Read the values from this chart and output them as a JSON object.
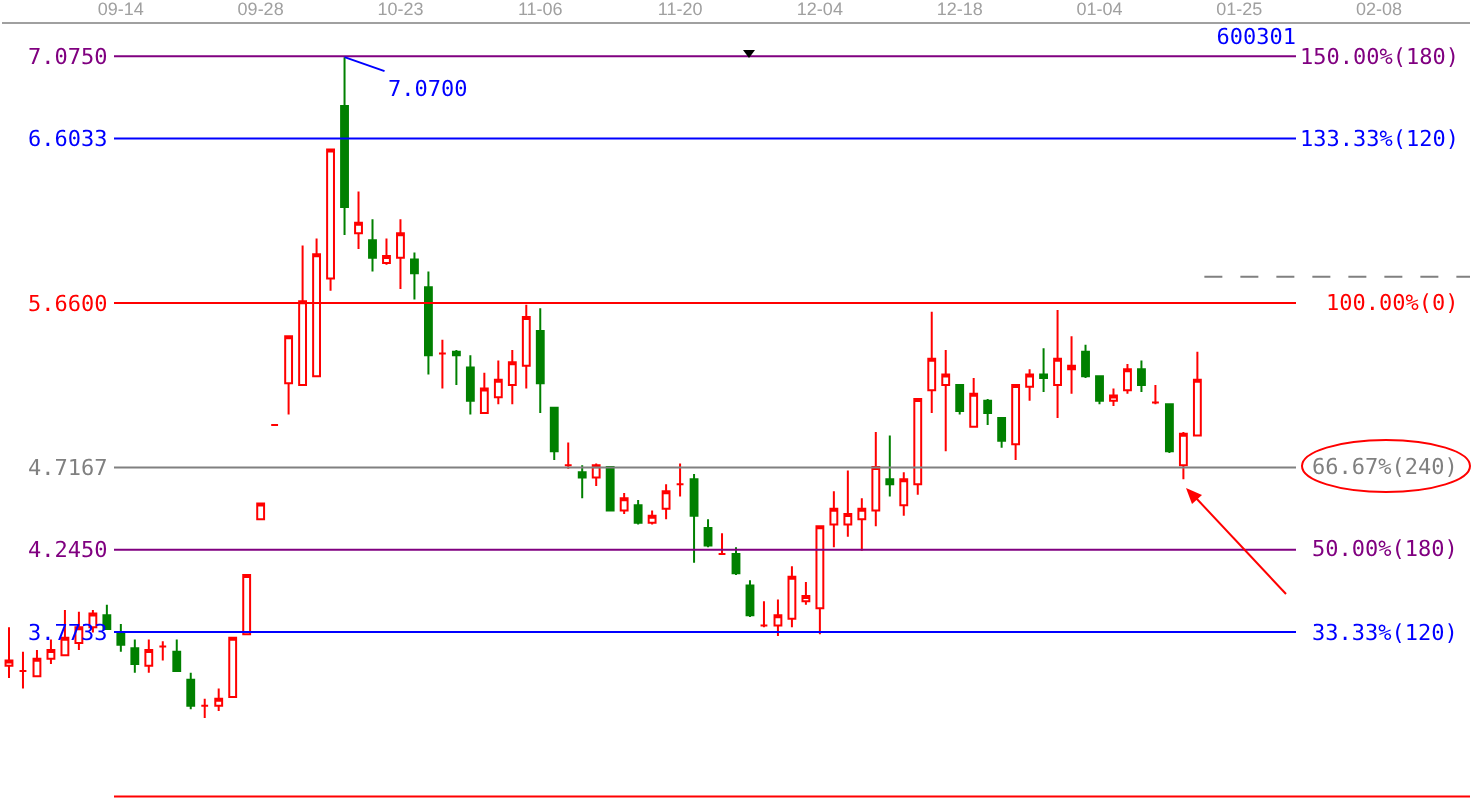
{
  "chart_data": {
    "type": "candlestick",
    "title": "600301",
    "categories": [
      null,
      null,
      null,
      null,
      null,
      null,
      null,
      null,
      "09-14",
      null,
      null,
      null,
      null,
      null,
      null,
      null,
      null,
      null,
      "09-28",
      null,
      null,
      null,
      null,
      null,
      null,
      null,
      null,
      null,
      "10-23",
      null,
      null,
      null,
      null,
      null,
      null,
      null,
      null,
      null,
      "11-06",
      null,
      null,
      null,
      null,
      null,
      null,
      null,
      null,
      null,
      "11-20",
      null,
      null,
      null,
      null,
      null,
      null,
      null,
      null,
      null,
      "12-04",
      null,
      null,
      null,
      null,
      null,
      null,
      null,
      null,
      null,
      "12-18",
      null,
      null,
      null,
      null,
      null,
      null,
      null,
      null,
      null,
      "01-04",
      null,
      null,
      null,
      null,
      null,
      null,
      null,
      null,
      null,
      "01-25",
      null,
      null,
      null,
      null,
      null,
      null,
      null,
      null,
      null,
      "02-08",
      null,
      null,
      null,
      null,
      null,
      null
    ],
    "ohlc": [
      [
        3.58,
        3.8,
        3.51,
        3.61
      ],
      [
        3.55,
        3.66,
        3.45,
        3.55
      ],
      [
        3.52,
        3.67,
        3.52,
        3.62
      ],
      [
        3.62,
        3.73,
        3.59,
        3.67
      ],
      [
        3.64,
        3.9,
        3.64,
        3.74
      ],
      [
        3.71,
        3.89,
        3.67,
        3.8
      ],
      [
        3.8,
        3.9,
        3.77,
        3.88
      ],
      [
        3.87,
        3.93,
        3.79,
        3.79
      ],
      [
        3.77,
        3.82,
        3.66,
        3.7
      ],
      [
        3.68,
        3.73,
        3.54,
        3.59
      ],
      [
        3.58,
        3.73,
        3.54,
        3.67
      ],
      [
        3.69,
        3.72,
        3.61,
        3.69
      ],
      [
        3.66,
        3.73,
        3.55,
        3.55
      ],
      [
        3.5,
        3.54,
        3.33,
        3.35
      ],
      [
        3.35,
        3.39,
        3.28,
        3.35
      ],
      [
        3.35,
        3.45,
        3.32,
        3.39
      ],
      [
        3.4,
        3.74,
        3.4,
        3.74
      ],
      [
        3.76,
        4.1,
        3.76,
        4.1
      ],
      [
        4.42,
        4.51,
        4.42,
        4.51
      ],
      [
        4.96,
        4.96,
        4.96,
        4.96
      ],
      [
        5.2,
        5.47,
        5.02,
        5.47
      ],
      [
        5.19,
        5.99,
        5.19,
        5.67
      ],
      [
        5.24,
        6.03,
        5.24,
        5.94
      ],
      [
        5.8,
        6.54,
        5.73,
        6.54
      ],
      [
        6.79,
        7.07,
        6.05,
        6.21
      ],
      [
        6.06,
        6.3,
        5.97,
        6.12
      ],
      [
        6.02,
        6.14,
        5.84,
        5.92
      ],
      [
        5.89,
        6.03,
        5.88,
        5.93
      ],
      [
        5.92,
        6.14,
        5.74,
        6.06
      ],
      [
        5.91,
        5.95,
        5.68,
        5.83
      ],
      [
        5.75,
        5.84,
        5.25,
        5.36
      ],
      [
        5.37,
        5.45,
        5.17,
        5.37
      ],
      [
        5.38,
        5.39,
        5.19,
        5.36
      ],
      [
        5.29,
        5.36,
        5.02,
        5.1
      ],
      [
        5.03,
        5.26,
        5.03,
        5.17
      ],
      [
        5.12,
        5.33,
        5.08,
        5.22
      ],
      [
        5.19,
        5.39,
        5.08,
        5.32
      ],
      [
        5.3,
        5.65,
        5.17,
        5.58
      ],
      [
        5.5,
        5.63,
        5.03,
        5.2
      ],
      [
        5.06,
        5.06,
        4.76,
        4.81
      ],
      [
        4.73,
        4.86,
        4.71,
        4.73
      ],
      [
        4.69,
        4.73,
        4.54,
        4.66
      ],
      [
        4.66,
        4.74,
        4.61,
        4.73
      ],
      [
        4.72,
        4.72,
        4.47,
        4.47
      ],
      [
        4.47,
        4.57,
        4.45,
        4.54
      ],
      [
        4.5,
        4.53,
        4.39,
        4.4
      ],
      [
        4.4,
        4.47,
        4.39,
        4.44
      ],
      [
        4.48,
        4.62,
        4.42,
        4.58
      ],
      [
        4.62,
        4.74,
        4.55,
        4.62
      ],
      [
        4.65,
        4.68,
        4.17,
        4.44
      ],
      [
        4.37,
        4.42,
        4.26,
        4.27
      ],
      [
        4.22,
        4.34,
        4.22,
        4.22
      ],
      [
        4.22,
        4.26,
        4.1,
        4.11
      ],
      [
        4.04,
        4.07,
        3.86,
        3.87
      ],
      [
        3.81,
        3.95,
        3.8,
        3.81
      ],
      [
        3.81,
        3.96,
        3.75,
        3.87
      ],
      [
        3.85,
        4.15,
        3.8,
        4.09
      ],
      [
        3.95,
        4.06,
        3.93,
        3.98
      ],
      [
        3.91,
        4.38,
        3.76,
        4.38
      ],
      [
        4.39,
        4.58,
        4.26,
        4.48
      ],
      [
        4.39,
        4.7,
        4.32,
        4.45
      ],
      [
        4.42,
        4.54,
        4.24,
        4.48
      ],
      [
        4.47,
        4.92,
        4.38,
        4.72
      ],
      [
        4.65,
        4.9,
        4.55,
        4.62
      ],
      [
        4.5,
        4.69,
        4.44,
        4.65
      ],
      [
        4.62,
        5.11,
        4.56,
        5.11
      ],
      [
        5.16,
        5.61,
        5.03,
        5.34
      ],
      [
        5.19,
        5.39,
        4.81,
        5.25
      ],
      [
        5.19,
        5.19,
        5.02,
        5.04
      ],
      [
        4.95,
        5.23,
        4.95,
        5.14
      ],
      [
        5.1,
        5.11,
        4.96,
        5.03
      ],
      [
        5.0,
        5.0,
        4.83,
        4.87
      ],
      [
        4.85,
        5.19,
        4.76,
        5.19
      ],
      [
        5.18,
        5.28,
        5.1,
        5.25
      ],
      [
        5.25,
        5.4,
        5.15,
        5.23
      ],
      [
        5.19,
        5.62,
        5.0,
        5.34
      ],
      [
        5.28,
        5.47,
        5.14,
        5.3
      ],
      [
        5.38,
        5.42,
        5.23,
        5.24
      ],
      [
        5.24,
        5.24,
        5.08,
        5.1
      ],
      [
        5.1,
        5.17,
        5.07,
        5.13
      ],
      [
        5.16,
        5.31,
        5.14,
        5.28
      ],
      [
        5.28,
        5.33,
        5.15,
        5.19
      ],
      [
        5.09,
        5.19,
        5.08,
        5.09
      ],
      [
        5.08,
        5.08,
        4.8,
        4.81
      ],
      [
        4.73,
        4.92,
        4.65,
        4.91
      ],
      [
        4.9,
        5.38,
        4.9,
        5.22
      ],
      null,
      null,
      null,
      null,
      null,
      null,
      null,
      null,
      null,
      null,
      null,
      null,
      null,
      null,
      null,
      null,
      null,
      null,
      null
    ],
    "colors": [
      "#ff0000",
      "#ff0000",
      "#ff0000",
      "#ff0000",
      "#ff0000",
      "#ff0000",
      "#ff0000",
      "#008000",
      "#008000",
      "#008000",
      "#ff0000",
      "#ff0000",
      "#008000",
      "#008000",
      "#ff0000",
      "#ff0000",
      "#ff0000",
      "#ff0000",
      "#ff0000",
      "#ff0000",
      "#ff0000",
      "#ff0000",
      "#ff0000",
      "#ff0000",
      "#008000",
      "#ff0000",
      "#008000",
      "#ff0000",
      "#ff0000",
      "#008000",
      "#008000",
      "#ff0000",
      "#008000",
      "#008000",
      "#ff0000",
      "#ff0000",
      "#ff0000",
      "#ff0000",
      "#008000",
      "#008000",
      "#ff0000",
      "#008000",
      "#ff0000",
      "#008000",
      "#ff0000",
      "#008000",
      "#ff0000",
      "#ff0000",
      "#ff0000",
      "#008000",
      "#008000",
      "#ff0000",
      "#008000",
      "#008000",
      "#ff0000",
      "#ff0000",
      "#ff0000",
      "#ff0000",
      "#ff0000",
      "#ff0000",
      "#ff0000",
      "#ff0000",
      "#ff0000",
      "#008000",
      "#ff0000",
      "#ff0000",
      "#ff0000",
      "#ff0000",
      "#008000",
      "#ff0000",
      "#008000",
      "#008000",
      "#ff0000",
      "#ff0000",
      "#008000",
      "#ff0000",
      "#ff0000",
      "#008000",
      "#008000",
      "#ff0000",
      "#ff0000",
      "#008000",
      "#ff0000",
      "#008000",
      "#ff0000",
      "#ff0000",
      null,
      null,
      null,
      null,
      null,
      null,
      null,
      null,
      null,
      null,
      null,
      null,
      null,
      null,
      null,
      null,
      null,
      null,
      null
    ],
    "ylim": [
      2.81,
      7.26
    ],
    "yticks": [
      {
        "value": 7.075,
        "label": "7.0750"
      },
      {
        "value": 6.6033,
        "label": "6.6033"
      },
      {
        "value": 5.66,
        "label": "5.6600"
      },
      {
        "value": 4.7167,
        "label": "4.7167"
      },
      {
        "value": 4.245,
        "label": "4.2450"
      },
      {
        "value": 3.7733,
        "label": "3.7733"
      }
    ],
    "ref_lines": [
      {
        "axis": "y",
        "value": 7.075,
        "color": "#800080"
      },
      {
        "axis": "y",
        "value": 6.6033,
        "color": "#0000ff"
      },
      {
        "axis": "y",
        "value": 5.66,
        "color": "#ff0000"
      },
      {
        "axis": "y",
        "value": 4.7167,
        "color": "#808080"
      },
      {
        "axis": "y",
        "value": 4.245,
        "color": "#800080"
      },
      {
        "axis": "y",
        "value": 3.7733,
        "color": "#0000ff"
      },
      {
        "axis": "y",
        "value": 2.83,
        "color": "#ff0000"
      },
      {
        "axis": "y",
        "value": 5.81,
        "color": "#808080",
        "line_style": "dashed"
      }
    ],
    "annotations": [
      {
        "text": "7.0700",
        "y": 7.07
      },
      "150.00%(180)",
      "133.33%(120)",
      "100.00%(0)",
      "66.67%(240)",
      "50.00%(180)",
      "33.33%(120)"
    ]
  }
}
